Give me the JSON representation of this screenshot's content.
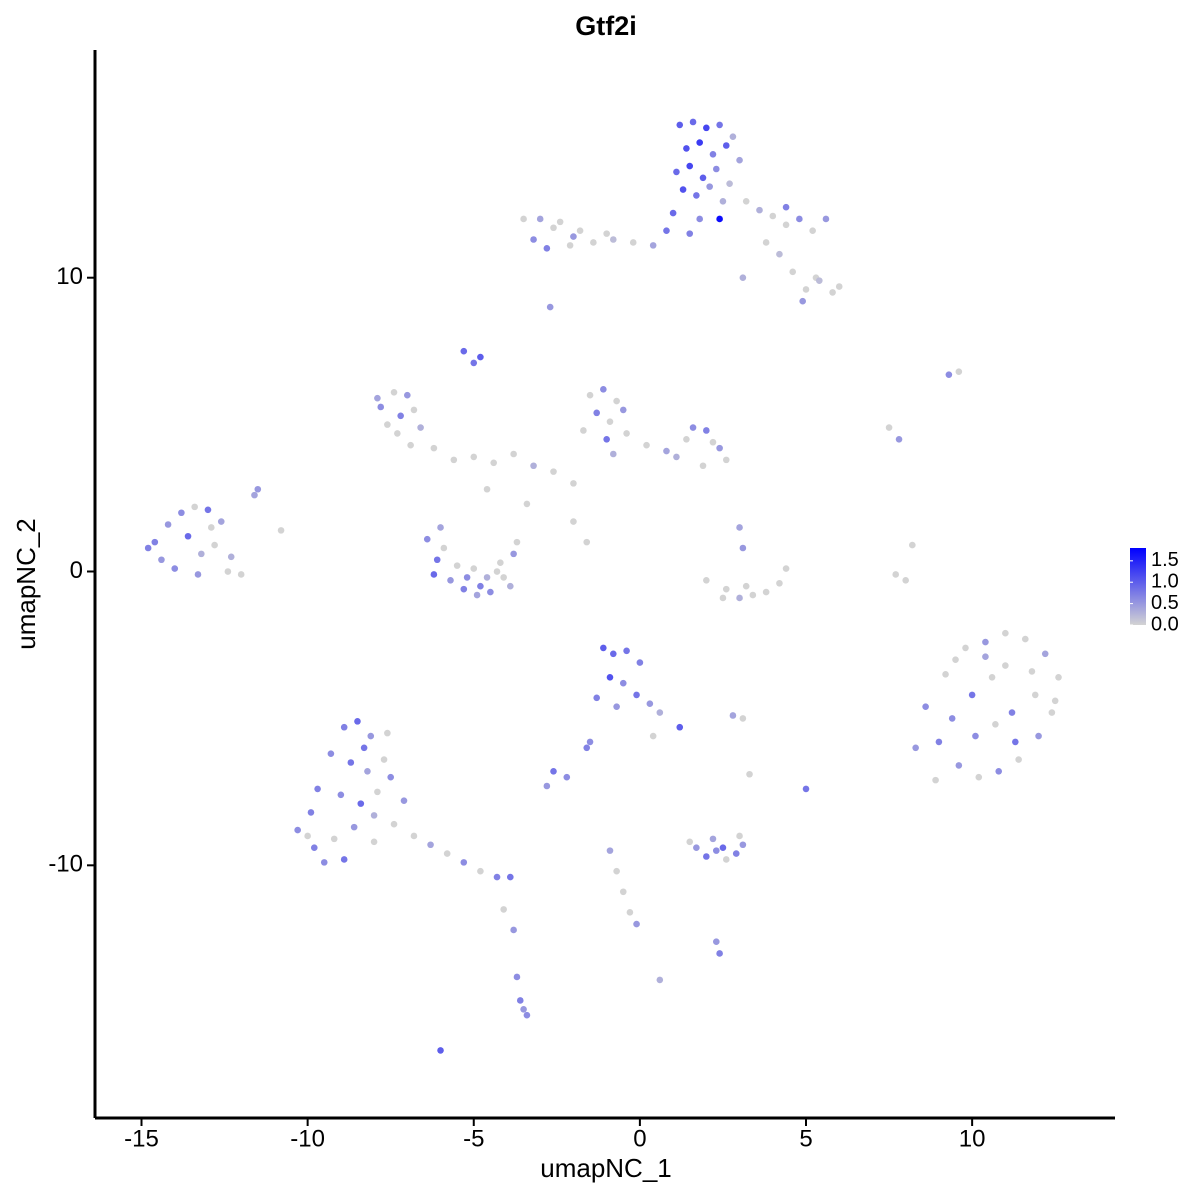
{
  "chart_data": {
    "type": "scatter",
    "title": "Gtf2i",
    "xlabel": "umapNC_1",
    "ylabel": "umapNC_2",
    "xlim": [
      -16.4,
      14.3
    ],
    "ylim": [
      -18.6,
      17.75
    ],
    "xticks": [
      -15,
      -10,
      -5,
      0,
      5,
      10
    ],
    "yticks": [
      -10,
      0,
      10
    ],
    "color_low": "#d3d3d3",
    "color_high": "#0000ff",
    "clim": [
      0,
      1.8
    ],
    "colorbar_ticks": [
      {
        "value": 0,
        "label": "0.0"
      },
      {
        "value": 0.5,
        "label": "0.5"
      },
      {
        "value": 1,
        "label": "1.0"
      },
      {
        "value": 1.5,
        "label": "1.5"
      }
    ],
    "x": [
      1.2,
      1.6,
      2.0,
      2.4,
      2.8,
      1.4,
      1.8,
      2.2,
      2.6,
      3.0,
      1.1,
      1.5,
      1.9,
      2.3,
      2.7,
      1.3,
      1.7,
      2.1,
      2.5,
      2.4,
      3.2,
      3.6,
      4.0,
      4.4,
      4.8,
      5.2,
      5.6,
      3.8,
      4.2,
      4.6,
      5.0,
      5.4,
      5.8,
      6.0,
      4.9,
      5.3,
      3.1,
      1.5,
      0.8,
      0.4,
      -0.2,
      -0.8,
      -1.4,
      -2.0,
      -2.6,
      -3.2,
      -3.0,
      -2.4,
      -2.8,
      -1.8,
      -2.7,
      -4.8,
      -5.3,
      -5.0,
      -3.5,
      -1.0,
      1.0,
      1.8,
      -2.1,
      4.4,
      -7.8,
      -7.4,
      -7.0,
      -7.6,
      -7.2,
      -6.8,
      -7.9,
      -7.3,
      -6.6,
      -6.9,
      -6.2,
      -5.6,
      -5.0,
      -4.4,
      -3.8,
      -3.2,
      -2.6,
      -2.0,
      -4.6,
      -3.4,
      -1.5,
      -1.1,
      -0.7,
      -1.3,
      -0.9,
      -0.5,
      -1.7,
      -1.0,
      -0.4,
      -0.8,
      0.2,
      0.8,
      1.4,
      1.6,
      2.0,
      2.4,
      2.6,
      1.1,
      1.9,
      2.2,
      -14.6,
      -14.2,
      -13.8,
      -13.4,
      -13.0,
      -12.6,
      -14.4,
      -13.6,
      -13.2,
      -12.8,
      -14.0,
      -12.4,
      -12.0,
      -12.3,
      -11.6,
      -11.5,
      -10.8,
      -13.3,
      -12.9,
      -14.8,
      -6.4,
      -6.1,
      -5.7,
      -5.3,
      -4.9,
      -4.5,
      -4.1,
      -3.8,
      -6.2,
      -5.5,
      -5.0,
      -4.6,
      -4.2,
      -3.7,
      -6.0,
      -5.9,
      -4.8,
      -4.3,
      -5.2,
      -3.9,
      2.0,
      2.6,
      3.0,
      3.4,
      3.8,
      4.2,
      4.4,
      3.2,
      3.1,
      2.5,
      7.5,
      7.8,
      9.3,
      9.6,
      8.0,
      8.2,
      7.7,
      3.0,
      -2.0,
      -1.6,
      8.6,
      9.2,
      9.8,
      10.4,
      11.0,
      11.6,
      12.2,
      12.6,
      9.0,
      9.6,
      10.2,
      10.8,
      11.4,
      12.0,
      12.4,
      10.0,
      10.6,
      11.2,
      11.8,
      9.4,
      8.3,
      8.9,
      9.5,
      10.1,
      10.7,
      11.3,
      11.9,
      12.5,
      10.4,
      11.0,
      -1.1,
      -0.8,
      -0.4,
      0.0,
      -0.9,
      -0.5,
      -0.1,
      0.3,
      0.6,
      1.2,
      -1.3,
      -0.7,
      0.4,
      -1.5,
      2.8,
      3.1,
      -2.6,
      -2.2,
      -2.8,
      -1.6,
      -8.9,
      -8.5,
      -8.1,
      -9.3,
      -8.7,
      -8.2,
      -7.7,
      -9.7,
      -9.0,
      -8.4,
      -7.9,
      -10.3,
      -9.8,
      -9.2,
      -8.6,
      -8.0,
      -7.4,
      -9.5,
      -8.9,
      -7.1,
      -6.8,
      -6.3,
      -5.8,
      -5.3,
      -4.8,
      -4.3,
      -3.9,
      -4.1,
      -3.8,
      -3.7,
      -3.6,
      -3.5,
      -3.4,
      -6.0,
      -8.0,
      -7.5,
      -9.9,
      -10.0,
      -8.3,
      -7.6,
      1.7,
      2.0,
      2.3,
      2.6,
      2.9,
      3.1,
      2.2,
      2.5,
      1.5,
      3.0,
      -0.9,
      -0.7,
      -0.5,
      -0.3,
      -0.1,
      0.6,
      2.3,
      2.4,
      5.0,
      3.3
    ],
    "values": [
      15.2,
      15.3,
      15.1,
      15.2,
      14.8,
      14.4,
      14.6,
      14.2,
      14.5,
      14.0,
      13.6,
      13.8,
      13.4,
      13.7,
      13.2,
      13.0,
      12.8,
      13.1,
      12.6,
      12.0,
      12.6,
      12.3,
      12.1,
      11.8,
      12.0,
      11.6,
      12.0,
      11.2,
      10.8,
      10.2,
      9.6,
      9.9,
      9.5,
      9.7,
      9.2,
      10.0,
      10.0,
      11.5,
      11.6,
      11.1,
      11.2,
      11.3,
      11.2,
      11.4,
      11.7,
      11.3,
      12.0,
      11.9,
      11.0,
      11.6,
      9.0,
      7.3,
      7.5,
      7.1,
      12.0,
      11.5,
      12.2,
      12.0,
      11.1,
      12.4,
      5.6,
      6.1,
      6.0,
      5.0,
      5.3,
      5.5,
      5.9,
      4.7,
      4.9,
      4.3,
      4.2,
      3.8,
      3.9,
      3.7,
      4.0,
      3.6,
      3.4,
      3.0,
      2.8,
      2.3,
      6.0,
      6.2,
      5.8,
      5.4,
      5.1,
      5.5,
      4.8,
      4.5,
      4.7,
      4.0,
      4.3,
      4.1,
      4.5,
      4.9,
      4.8,
      4.2,
      3.8,
      3.9,
      3.6,
      4.4,
      1.0,
      1.6,
      2.0,
      2.2,
      2.1,
      1.7,
      0.4,
      1.2,
      0.6,
      0.9,
      0.1,
      0.0,
      -0.1,
      0.5,
      2.6,
      2.8,
      1.4,
      -0.1,
      1.5,
      0.8,
      1.1,
      0.4,
      -0.3,
      -0.6,
      -0.8,
      -0.7,
      -0.2,
      0.6,
      -0.1,
      0.2,
      0.1,
      -0.2,
      0.3,
      1.0,
      1.5,
      0.8,
      -0.5,
      0.0,
      -0.2,
      -0.5,
      -0.3,
      -0.6,
      -0.9,
      -0.8,
      -0.7,
      -0.4,
      0.1,
      -0.5,
      0.8,
      -0.9,
      4.9,
      4.5,
      6.7,
      6.8,
      -0.3,
      0.9,
      -0.1,
      1.5,
      1.7,
      1.0,
      -4.6,
      -3.5,
      -2.6,
      -2.4,
      -2.1,
      -2.3,
      -2.8,
      -3.6,
      -5.8,
      -6.6,
      -7.0,
      -6.8,
      -6.4,
      -5.6,
      -4.8,
      -4.2,
      -3.6,
      -4.8,
      -3.4,
      -5.0,
      -6.0,
      -7.1,
      -3.0,
      -5.6,
      -5.2,
      -5.8,
      -4.2,
      -4.4,
      -2.9,
      -3.2,
      -2.6,
      -2.8,
      -2.7,
      -3.1,
      -3.6,
      -3.8,
      -4.2,
      -4.5,
      -4.8,
      -5.3,
      -4.3,
      -4.6,
      -5.6,
      -5.8,
      -4.9,
      -5.0,
      -6.8,
      -7.0,
      -7.3,
      -6.0,
      -5.3,
      -5.1,
      -5.6,
      -6.2,
      -6.5,
      -6.8,
      -6.4,
      -7.4,
      -7.6,
      -7.9,
      -7.5,
      -8.8,
      -9.4,
      -9.1,
      -8.7,
      -8.3,
      -8.6,
      -9.9,
      -9.8,
      -7.8,
      -9.0,
      -9.3,
      -9.6,
      -9.9,
      -10.2,
      -10.4,
      -10.4,
      -11.5,
      -12.2,
      -13.8,
      -14.6,
      -14.9,
      -15.1,
      -16.3,
      -9.2,
      -7.0,
      -8.2,
      -9.0,
      -6.0,
      -5.5,
      -9.4,
      -9.7,
      -9.5,
      -9.8,
      -9.6,
      -9.3,
      -9.1,
      -9.4,
      -9.2,
      -9.0,
      -9.5,
      -10.2,
      -10.9,
      -11.6,
      -12.0,
      -13.9,
      -12.6,
      -13.0,
      -7.4,
      -6.9
    ],
    "color_values": [
      1.0,
      0.9,
      1.2,
      0.8,
      0.3,
      1.1,
      1.3,
      0.7,
      1.0,
      0.4,
      0.9,
      1.2,
      1.0,
      0.6,
      0.2,
      1.1,
      0.8,
      0.5,
      0.3,
      1.7,
      0,
      0.3,
      0,
      0,
      0.6,
      0,
      0.5,
      0,
      0.2,
      0,
      0,
      0.2,
      0,
      0,
      0.5,
      0,
      0.3,
      0.7,
      0.8,
      0.4,
      0,
      0.2,
      0,
      0.5,
      0,
      0.6,
      0.4,
      0,
      0.7,
      0,
      0.5,
      1.0,
      0.9,
      0.8,
      0,
      0,
      0.9,
      0.6,
      0,
      0.7,
      0.6,
      0,
      0.5,
      0,
      0.7,
      0,
      0.4,
      0,
      0.3,
      0,
      0,
      0,
      0,
      0,
      0,
      0.3,
      0,
      0,
      0,
      0,
      0,
      0.6,
      0,
      0.7,
      0,
      0.5,
      0,
      0.8,
      0,
      0.3,
      0,
      0.4,
      0,
      0.6,
      0.7,
      0.5,
      0,
      0.3,
      0,
      0,
      0.7,
      0.5,
      0.6,
      0,
      0.8,
      0.4,
      0.5,
      0.9,
      0.3,
      0,
      0.6,
      0,
      0,
      0.3,
      0.4,
      0.5,
      0,
      0.5,
      0,
      0.7,
      0.6,
      0.8,
      0.5,
      0.7,
      0.4,
      0.6,
      0,
      0.5,
      0.9,
      0,
      0,
      0.3,
      0,
      0,
      0.4,
      0,
      0.7,
      0,
      0.6,
      0.3,
      0,
      0,
      0.3,
      0,
      0,
      0,
      0,
      0,
      0.5,
      0,
      0,
      0.5,
      0.6,
      0,
      0,
      0,
      0,
      0.4,
      0,
      0,
      0.6,
      0,
      0,
      0.5,
      0,
      0,
      0.4,
      0,
      0.7,
      0.5,
      0,
      0.6,
      0,
      0.5,
      0,
      0.8,
      0,
      0.7,
      0,
      0.6,
      0.5,
      0,
      0,
      0.6,
      0,
      0.8,
      0,
      0,
      0.4,
      0,
      1.0,
      0.9,
      0.8,
      0.7,
      1.1,
      0.6,
      0.8,
      0.5,
      0.3,
      1.0,
      0.7,
      0.5,
      0,
      0.6,
      0.4,
      0,
      0.8,
      0.6,
      0.5,
      0.7,
      0.7,
      0.9,
      0.5,
      0.6,
      0.8,
      0.4,
      0,
      0.7,
      0.6,
      0.9,
      0,
      0.6,
      0.7,
      0,
      0.5,
      0.3,
      0,
      0.6,
      0.8,
      0.5,
      0,
      0.4,
      0,
      0.6,
      0,
      0.7,
      0.8,
      0,
      0.5,
      0.6,
      0.7,
      0.5,
      0.6,
      1.0,
      0,
      0.6,
      0.7,
      0,
      0.8,
      0,
      0.5,
      0.8,
      0.6,
      0,
      0.7,
      0.5,
      0.4,
      0.9,
      0,
      0,
      0.4,
      0,
      0,
      0,
      0.5,
      0.3,
      0.5,
      0.7,
      0.8,
      0
    ]
  }
}
